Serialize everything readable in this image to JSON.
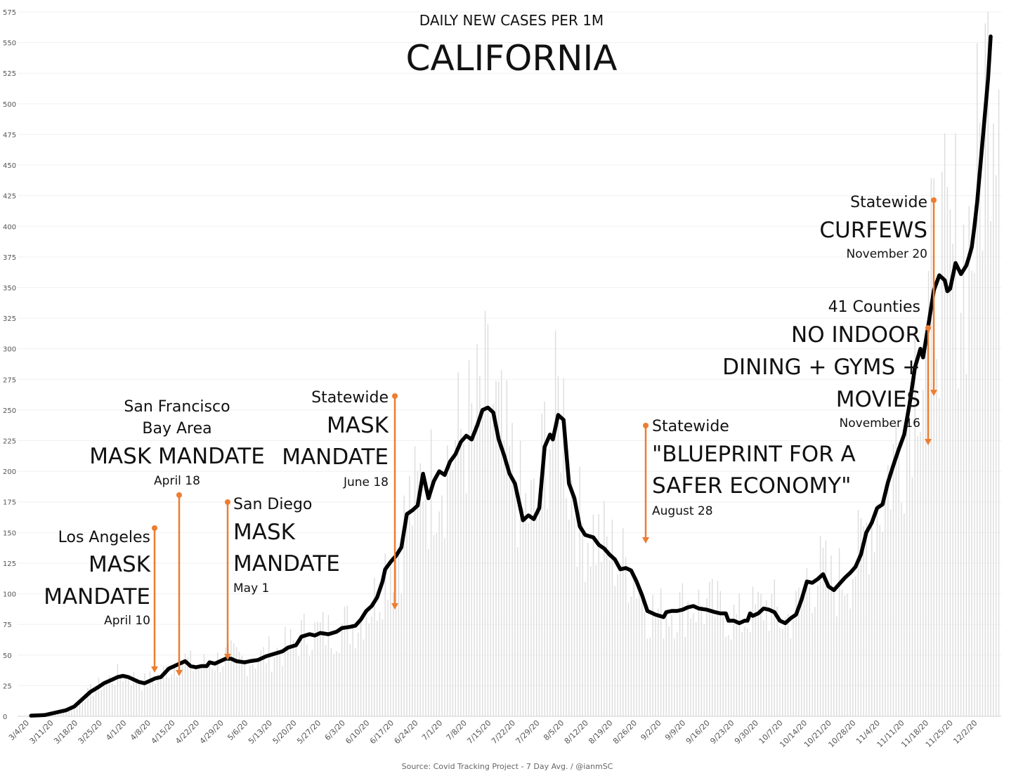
{
  "chart_data": {
    "type": "line",
    "title": "DAILY NEW CASES PER 1M",
    "subtitle": "CALIFORNIA",
    "source": "Source: Covid Tracking Project - 7 Day Avg. / @ianmSC",
    "ylim": [
      0,
      575
    ],
    "y_ticks": [
      "0",
      "25",
      "50",
      "75",
      "100",
      "125",
      "150",
      "175",
      "200",
      "225",
      "250",
      "275",
      "300",
      "325",
      "350",
      "375",
      "400",
      "425",
      "450",
      "475",
      "500",
      "525",
      "550",
      "575"
    ],
    "x_start_day": 0,
    "x_end_day": 279,
    "x_tick_labels": [
      "3/4/20",
      "3/11/20",
      "3/18/20",
      "3/25/20",
      "4/1/20",
      "4/8/20",
      "4/15/20",
      "4/22/20",
      "4/29/20",
      "5/6/20",
      "5/13/20",
      "5/20/20",
      "5/27/20",
      "6/3/20",
      "6/10/20",
      "6/17/20",
      "6/24/20",
      "7/1/20",
      "7/8/20",
      "7/15/20",
      "7/22/20",
      "7/29/20",
      "8/5/20",
      "8/12/20",
      "8/19/20",
      "8/26/20",
      "9/2/20",
      "9/9/20",
      "9/16/20",
      "9/23/20",
      "9/30/20",
      "10/7/20",
      "10/14/20",
      "10/21/20",
      "10/28/20",
      "11/4/20",
      "11/11/20",
      "11/18/20",
      "11/25/20",
      "12/2/20"
    ],
    "series": [
      {
        "name": "7 Day Avg.",
        "color": "#000000",
        "points": [
          [
            5,
            0.5
          ],
          [
            10,
            1
          ],
          [
            14,
            3
          ],
          [
            18,
            5
          ],
          [
            21,
            8
          ],
          [
            24,
            14
          ],
          [
            27,
            20
          ],
          [
            30,
            24
          ],
          [
            32,
            27
          ],
          [
            35,
            30
          ],
          [
            37,
            32
          ],
          [
            39,
            33
          ],
          [
            41,
            32
          ],
          [
            43,
            30
          ],
          [
            45,
            28
          ],
          [
            47,
            27
          ],
          [
            49,
            29
          ],
          [
            51,
            31
          ],
          [
            53,
            32
          ],
          [
            56,
            39
          ],
          [
            58,
            41
          ],
          [
            60,
            43
          ],
          [
            62,
            45
          ],
          [
            64,
            41
          ],
          [
            66,
            40
          ],
          [
            68,
            41
          ],
          [
            70,
            41
          ],
          [
            71,
            44
          ],
          [
            73,
            43
          ],
          [
            75,
            45
          ],
          [
            77,
            47
          ],
          [
            79,
            47
          ],
          [
            81,
            45
          ],
          [
            84,
            44
          ],
          [
            86,
            45
          ],
          [
            89,
            46
          ],
          [
            92,
            49
          ],
          [
            95,
            51
          ],
          [
            98,
            53
          ],
          [
            100,
            56
          ],
          [
            103,
            58
          ],
          [
            105,
            65
          ],
          [
            108,
            67
          ],
          [
            110,
            66
          ],
          [
            112,
            68
          ],
          [
            115,
            67
          ],
          [
            118,
            69
          ],
          [
            120,
            72
          ],
          [
            123,
            73
          ],
          [
            125,
            74
          ],
          [
            127,
            79
          ],
          [
            129,
            86
          ],
          [
            131,
            90
          ],
          [
            133,
            97
          ],
          [
            135,
            110
          ],
          [
            136,
            120
          ],
          [
            138,
            126
          ],
          [
            140,
            131
          ],
          [
            142,
            138
          ],
          [
            144,
            165
          ],
          [
            146,
            168
          ],
          [
            148,
            172
          ],
          [
            150,
            198
          ],
          [
            152,
            178
          ],
          [
            154,
            192
          ],
          [
            156,
            200
          ],
          [
            158,
            197
          ],
          [
            160,
            208
          ],
          [
            162,
            214
          ],
          [
            164,
            224
          ],
          [
            166,
            229
          ],
          [
            168,
            226
          ],
          [
            170,
            237
          ],
          [
            172,
            250
          ],
          [
            174,
            252
          ],
          [
            176,
            248
          ],
          [
            178,
            226
          ],
          [
            180,
            213
          ],
          [
            182,
            198
          ],
          [
            184,
            190
          ],
          [
            186,
            170
          ],
          [
            187,
            160
          ],
          [
            189,
            164
          ],
          [
            191,
            161
          ],
          [
            193,
            170
          ],
          [
            195,
            220
          ],
          [
            197,
            230
          ],
          [
            198,
            226
          ],
          [
            200,
            246
          ],
          [
            202,
            242
          ],
          [
            204,
            190
          ],
          [
            206,
            178
          ],
          [
            208,
            155
          ],
          [
            210,
            148
          ],
          [
            213,
            146
          ],
          [
            215,
            140
          ],
          [
            217,
            137
          ],
          [
            219,
            132
          ],
          [
            221,
            128
          ],
          [
            223,
            120
          ],
          [
            225,
            121
          ],
          [
            227,
            119
          ],
          [
            229,
            110
          ],
          [
            231,
            99
          ],
          [
            233,
            86
          ],
          [
            236,
            83
          ],
          [
            239,
            81
          ],
          [
            240,
            85
          ],
          [
            242,
            86
          ],
          [
            244,
            86
          ],
          [
            246,
            87
          ],
          [
            248,
            89
          ],
          [
            250,
            90
          ],
          [
            252,
            88
          ],
          [
            255,
            87
          ],
          [
            258,
            85
          ],
          [
            260,
            84
          ],
          [
            262,
            84
          ],
          [
            263,
            78
          ],
          [
            265,
            78
          ],
          [
            267,
            76
          ],
          [
            269,
            78
          ],
          [
            270,
            78
          ],
          [
            271,
            84
          ],
          [
            272,
            82
          ],
          [
            274,
            84
          ],
          [
            276,
            88
          ],
          [
            278,
            87
          ],
          [
            280,
            85
          ],
          [
            282,
            78
          ],
          [
            284,
            76
          ],
          [
            286,
            80
          ],
          [
            288,
            83
          ],
          [
            290,
            95
          ],
          [
            292,
            110
          ],
          [
            294,
            109
          ],
          [
            296,
            112
          ],
          [
            298,
            116
          ],
          [
            300,
            106
          ],
          [
            302,
            103
          ],
          [
            304,
            108
          ],
          [
            306,
            113
          ],
          [
            308,
            117
          ],
          [
            310,
            122
          ],
          [
            312,
            132
          ],
          [
            314,
            150
          ],
          [
            316,
            158
          ],
          [
            318,
            170
          ],
          [
            320,
            173
          ],
          [
            322,
            191
          ],
          [
            324,
            205
          ],
          [
            326,
            218
          ],
          [
            328,
            230
          ],
          [
            330,
            255
          ],
          [
            332,
            285
          ],
          [
            334,
            300
          ],
          [
            335,
            293
          ],
          [
            337,
            320
          ],
          [
            339,
            348
          ],
          [
            341,
            360
          ],
          [
            343,
            356
          ],
          [
            344,
            347
          ],
          [
            345,
            349
          ],
          [
            347,
            370
          ],
          [
            349,
            361
          ],
          [
            351,
            368
          ],
          [
            352,
            375
          ],
          [
            353,
            383
          ],
          [
            354,
            400
          ],
          [
            355,
            420
          ],
          [
            357,
            470
          ],
          [
            359,
            520
          ],
          [
            360,
            555
          ]
        ]
      }
    ],
    "annotations": [
      {
        "lines": [
          "Los Angeles",
          "MASK",
          "MANDATE",
          "April 10"
        ],
        "arrow_color": "#ED7D31"
      },
      {
        "lines": [
          "San Francisco",
          "Bay Area",
          "MASK MANDATE",
          "April 18"
        ],
        "arrow_color": "#ED7D31"
      },
      {
        "lines": [
          "San Diego",
          "MASK",
          "MANDATE",
          "May 1"
        ],
        "arrow_color": "#ED7D31"
      },
      {
        "lines": [
          "Statewide",
          "MASK",
          "MANDATE",
          "June 18"
        ],
        "arrow_color": "#ED7D31"
      },
      {
        "lines": [
          "Statewide",
          "\"BLUEPRINT FOR A",
          "SAFER ECONOMY\"",
          "August 28"
        ],
        "arrow_color": "#ED7D31"
      },
      {
        "lines": [
          "41 Counties",
          "NO INDOOR",
          "DINING + GYMS +",
          "MOVIES",
          "November 16"
        ],
        "arrow_color": "#ED7D31"
      },
      {
        "lines": [
          "Statewide",
          "CURFEWS",
          "November 20"
        ],
        "arrow_color": "#ED7D31"
      }
    ]
  }
}
